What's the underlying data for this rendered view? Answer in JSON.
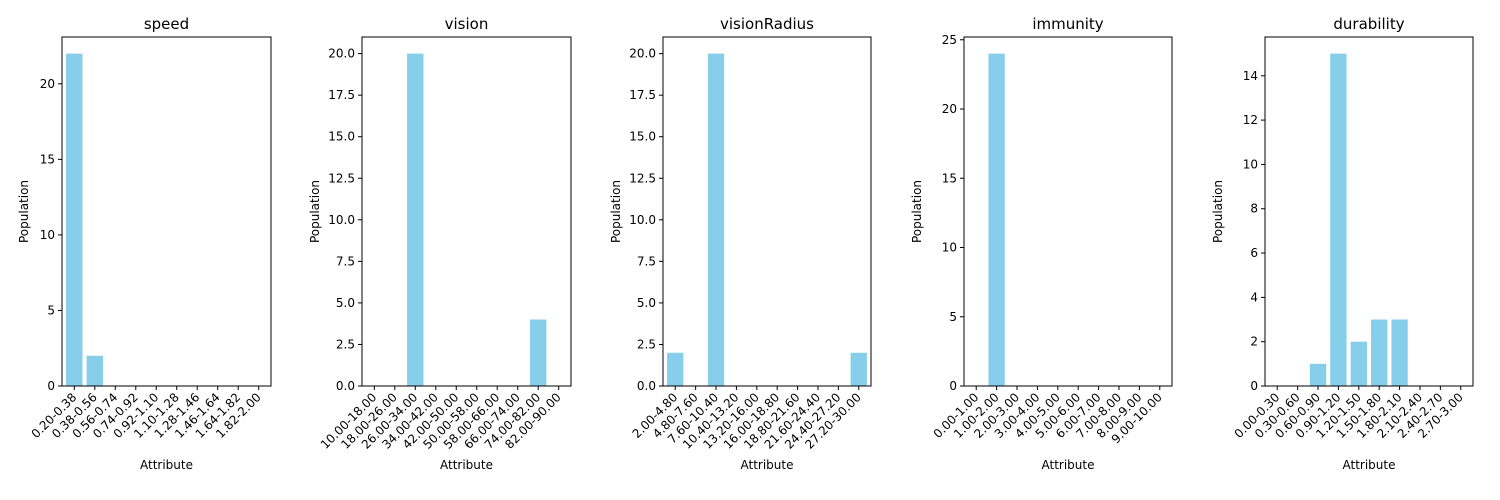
{
  "chart_data": [
    {
      "type": "bar",
      "title": "speed",
      "xlabel": "Attribute",
      "ylabel": "Population",
      "categories": [
        "0.20-0.38",
        "0.38-0.56",
        "0.56-0.74",
        "0.74-0.92",
        "0.92-1.10",
        "1.10-1.28",
        "1.28-1.46",
        "1.46-1.64",
        "1.64-1.82",
        "1.82-2.00"
      ],
      "values": [
        22,
        2,
        0,
        0,
        0,
        0,
        0,
        0,
        0,
        0
      ],
      "ylim": [
        0,
        23.1
      ],
      "yticks": [
        0,
        5,
        10,
        15,
        20
      ],
      "ytick_labels": [
        "0",
        "5",
        "10",
        "15",
        "20"
      ],
      "bar_color": "#87ceeb"
    },
    {
      "type": "bar",
      "title": "vision",
      "xlabel": "Attribute",
      "ylabel": "Population",
      "categories": [
        "10.00-18.00",
        "18.00-26.00",
        "26.00-34.00",
        "34.00-42.00",
        "42.00-50.00",
        "50.00-58.00",
        "58.00-66.00",
        "66.00-74.00",
        "74.00-82.00",
        "82.00-90.00"
      ],
      "values": [
        0,
        0,
        20,
        0,
        0,
        0,
        0,
        0,
        4,
        0
      ],
      "ylim": [
        0,
        21
      ],
      "yticks": [
        0,
        2.5,
        5,
        7.5,
        10,
        12.5,
        15,
        17.5,
        20
      ],
      "ytick_labels": [
        "0.0",
        "2.5",
        "5.0",
        "7.5",
        "10.0",
        "12.5",
        "15.0",
        "17.5",
        "20.0"
      ],
      "bar_color": "#87ceeb"
    },
    {
      "type": "bar",
      "title": "visionRadius",
      "xlabel": "Attribute",
      "ylabel": "Population",
      "categories": [
        "2.00-4.80",
        "4.80-7.60",
        "7.60-10.40",
        "10.40-13.20",
        "13.20-16.00",
        "16.00-18.80",
        "18.80-21.60",
        "21.60-24.40",
        "24.40-27.20",
        "27.20-30.00"
      ],
      "values": [
        2,
        0,
        20,
        0,
        0,
        0,
        0,
        0,
        0,
        2
      ],
      "ylim": [
        0,
        21
      ],
      "yticks": [
        0,
        2.5,
        5,
        7.5,
        10,
        12.5,
        15,
        17.5,
        20
      ],
      "ytick_labels": [
        "0.0",
        "2.5",
        "5.0",
        "7.5",
        "10.0",
        "12.5",
        "15.0",
        "17.5",
        "20.0"
      ],
      "bar_color": "#87ceeb"
    },
    {
      "type": "bar",
      "title": "immunity",
      "xlabel": "Attribute",
      "ylabel": "Population",
      "categories": [
        "0.00-1.00",
        "1.00-2.00",
        "2.00-3.00",
        "3.00-4.00",
        "4.00-5.00",
        "5.00-6.00",
        "6.00-7.00",
        "7.00-8.00",
        "8.00-9.00",
        "9.00-10.00"
      ],
      "values": [
        0,
        24,
        0,
        0,
        0,
        0,
        0,
        0,
        0,
        0
      ],
      "ylim": [
        0,
        25.2
      ],
      "yticks": [
        0,
        5,
        10,
        15,
        20,
        25
      ],
      "ytick_labels": [
        "0",
        "5",
        "10",
        "15",
        "20",
        "25"
      ],
      "bar_color": "#87ceeb"
    },
    {
      "type": "bar",
      "title": "durability",
      "xlabel": "Attribute",
      "ylabel": "Population",
      "categories": [
        "0.00-0.30",
        "0.30-0.60",
        "0.60-0.90",
        "0.90-1.20",
        "1.20-1.50",
        "1.50-1.80",
        "1.80-2.10",
        "2.10-2.40",
        "2.40-2.70",
        "2.70-3.00"
      ],
      "values": [
        0,
        0,
        1,
        15,
        2,
        3,
        3,
        0,
        0,
        0
      ],
      "ylim": [
        0,
        15.75
      ],
      "yticks": [
        0,
        2,
        4,
        6,
        8,
        10,
        12,
        14
      ],
      "ytick_labels": [
        "0",
        "2",
        "4",
        "6",
        "8",
        "10",
        "12",
        "14"
      ],
      "bar_color": "#87ceeb"
    }
  ]
}
